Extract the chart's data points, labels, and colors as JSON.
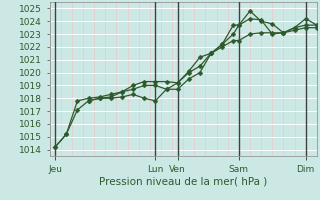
{
  "xlabel": "Pression niveau de la mer( hPa )",
  "bg_color": "#cce8e4",
  "grid_h_color": "#ffffff",
  "grid_v_color": "#e8c8c8",
  "line_color": "#2d5a2d",
  "ylim": [
    1013.5,
    1025.5
  ],
  "yticks": [
    1014,
    1015,
    1016,
    1017,
    1018,
    1019,
    1020,
    1021,
    1022,
    1023,
    1024,
    1025
  ],
  "xlim": [
    0,
    96
  ],
  "xtick_labels": [
    "Jeu",
    "Lun",
    "Ven",
    "Sam",
    "Dim"
  ],
  "xtick_positions": [
    2,
    38,
    46,
    68,
    92
  ],
  "day_vlines": [
    2,
    38,
    46,
    68,
    92
  ],
  "minor_x_interval": 4,
  "line1_x": [
    2,
    6,
    10,
    14,
    18,
    22,
    26,
    30,
    34,
    38,
    42,
    46,
    50,
    54,
    58,
    62,
    66,
    68,
    72,
    76,
    80,
    84,
    88,
    92,
    96
  ],
  "line1_y": [
    1014.2,
    1015.2,
    1017.1,
    1017.8,
    1018.0,
    1018.0,
    1018.1,
    1018.3,
    1018.0,
    1017.8,
    1018.7,
    1018.7,
    1019.5,
    1020.0,
    1021.5,
    1022.0,
    1022.5,
    1022.5,
    1023.0,
    1023.1,
    1023.1,
    1023.1,
    1023.3,
    1023.5,
    1023.5
  ],
  "line2_x": [
    2,
    6,
    10,
    14,
    18,
    22,
    26,
    30,
    34,
    38,
    42,
    46,
    50,
    54,
    58,
    62,
    66,
    68,
    72,
    76,
    80,
    84,
    88,
    92,
    96
  ],
  "line2_y": [
    1014.2,
    1015.2,
    1017.8,
    1018.0,
    1018.1,
    1018.3,
    1018.5,
    1018.7,
    1019.0,
    1019.0,
    1018.7,
    1019.2,
    1020.0,
    1020.5,
    1021.5,
    1022.2,
    1023.0,
    1023.7,
    1024.2,
    1024.1,
    1023.0,
    1023.1,
    1023.5,
    1024.2,
    1023.7
  ],
  "line3_x": [
    14,
    18,
    22,
    26,
    30,
    34,
    38,
    42,
    46,
    50,
    54,
    58,
    62,
    66,
    68,
    72,
    76,
    80,
    84,
    88,
    92,
    96
  ],
  "line3_y": [
    1017.8,
    1018.0,
    1018.1,
    1018.5,
    1019.0,
    1019.3,
    1019.3,
    1019.3,
    1019.2,
    1020.1,
    1021.2,
    1021.5,
    1022.2,
    1023.7,
    1023.7,
    1024.8,
    1024.0,
    1023.8,
    1023.1,
    1023.5,
    1023.7,
    1023.7
  ],
  "marker_size": 2.5,
  "lw": 0.9,
  "font_size_tick": 6.5,
  "font_size_label": 7.5
}
